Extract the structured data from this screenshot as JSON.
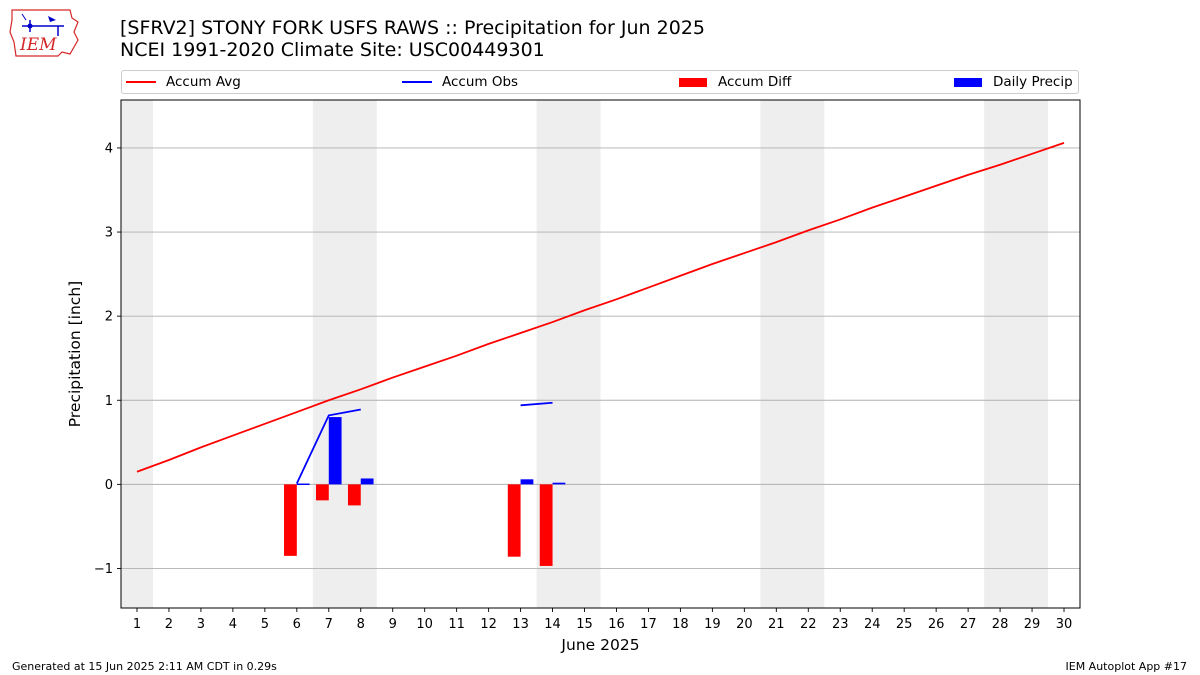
{
  "header": {
    "title_line1": "[SFRV2] STONY FORK USFS RAWS :: Precipitation for Jun 2025",
    "title_line2": "NCEI 1991-2020 Climate Site: USC00449301",
    "logo_text": "IEM"
  },
  "footer": {
    "left": "Generated at 15 Jun 2025 2:11 AM CDT in 0.29s",
    "right": "IEM Autoplot App #17"
  },
  "colors": {
    "accum_avg": "#ff0000",
    "accum_obs": "#0000ff",
    "accum_diff": "#ff0000",
    "daily_precip": "#0000ff",
    "weekend_shade": "#eeeeee",
    "grid": "#b0b0b0"
  },
  "chart_data": {
    "type": "bar",
    "xlabel": "June 2025",
    "ylabel": "Precipitation [inch]",
    "xlim": [
      0.5,
      30.5
    ],
    "ylim": [
      -1.47,
      4.57
    ],
    "grid": "horizontal",
    "legend_placement": "top",
    "x_ticks": [
      1,
      2,
      3,
      4,
      5,
      6,
      7,
      8,
      9,
      10,
      11,
      12,
      13,
      14,
      15,
      16,
      17,
      18,
      19,
      20,
      21,
      22,
      23,
      24,
      25,
      26,
      27,
      28,
      29,
      30
    ],
    "y_ticks": [
      -1,
      0,
      1,
      2,
      3,
      4
    ],
    "y_tick_labels": [
      "−1",
      "0",
      "1",
      "2",
      "3",
      "4"
    ],
    "weekend_shading": [
      [
        0.5,
        1.5
      ],
      [
        6.5,
        8.5
      ],
      [
        13.5,
        15.5
      ],
      [
        20.5,
        22.5
      ],
      [
        27.5,
        29.5
      ]
    ],
    "legend": [
      "Accum Avg",
      "Accum Obs",
      "Accum Diff",
      "Daily Precip"
    ],
    "accum_avg": {
      "name": "Accum Avg",
      "x": [
        1,
        2,
        3,
        4,
        5,
        6,
        7,
        8,
        9,
        10,
        11,
        12,
        13,
        14,
        15,
        16,
        17,
        18,
        19,
        20,
        21,
        22,
        23,
        24,
        25,
        26,
        27,
        28,
        29,
        30
      ],
      "y": [
        0.15,
        0.29,
        0.44,
        0.58,
        0.72,
        0.86,
        1.0,
        1.13,
        1.27,
        1.4,
        1.53,
        1.67,
        1.8,
        1.93,
        2.07,
        2.2,
        2.34,
        2.48,
        2.62,
        2.75,
        2.88,
        3.02,
        3.15,
        3.29,
        3.42,
        3.55,
        3.68,
        3.8,
        3.93,
        4.06
      ]
    },
    "accum_obs": {
      "name": "Accum Obs",
      "segments": [
        {
          "x": [
            6,
            7,
            8
          ],
          "y": [
            0.01,
            0.82,
            0.89
          ]
        },
        {
          "x": [
            13,
            14
          ],
          "y": [
            0.94,
            0.97
          ]
        }
      ]
    },
    "accum_diff": {
      "name": "Accum Diff",
      "x": [
        6,
        7,
        8,
        13,
        14
      ],
      "y": [
        -0.85,
        -0.19,
        -0.25,
        -0.86,
        -0.97
      ]
    },
    "daily_precip": {
      "name": "Daily Precip",
      "x": [
        6,
        7,
        8,
        13,
        14
      ],
      "y": [
        0.01,
        0.8,
        0.07,
        0.06,
        0.02
      ]
    }
  }
}
